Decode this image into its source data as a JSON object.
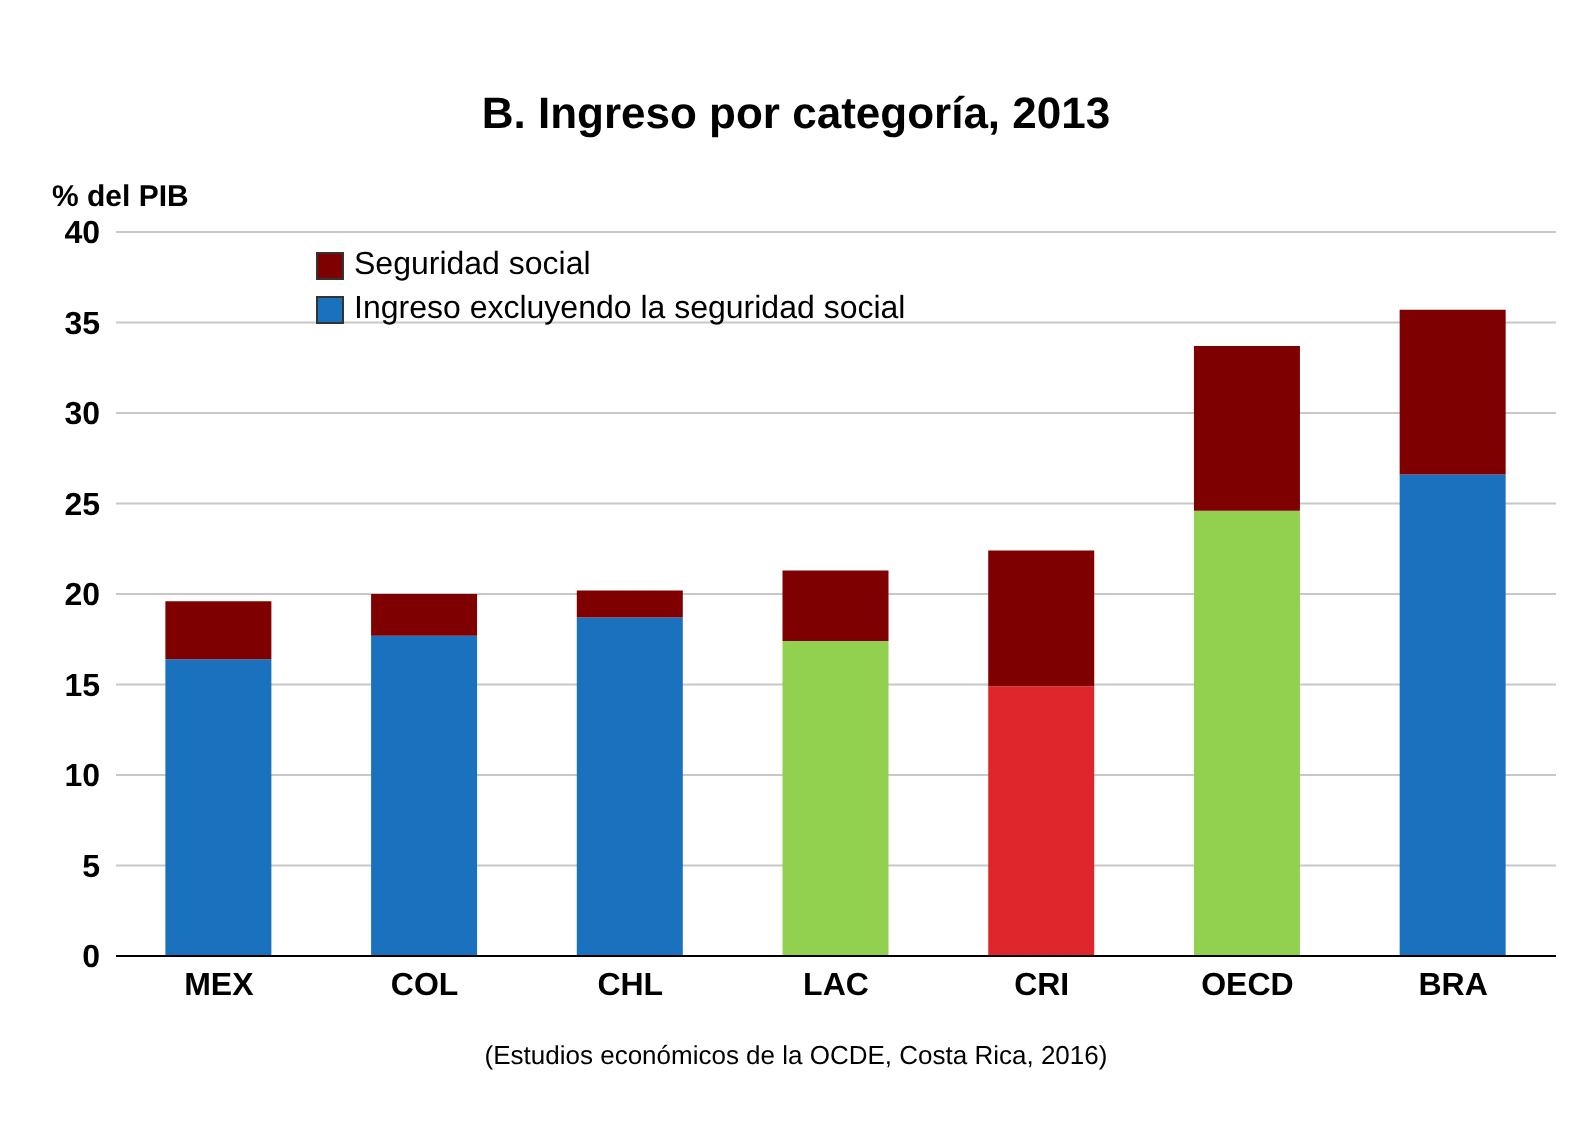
{
  "chart_data": {
    "type": "bar",
    "title": "B.  Ingreso por categoría, 2013",
    "ylabel": "% del PIB",
    "categories": [
      "MEX",
      "COL",
      "CHL",
      "LAC",
      "CRI",
      "OECD",
      "BRA"
    ],
    "stacked": true,
    "series": [
      {
        "name": "Ingreso excluyendo la seguridad social",
        "color": "#1a72bf",
        "colors": [
          "#1a72bf",
          "#1a72bf",
          "#1a72bf",
          "#92d050",
          "#e0262d",
          "#92d050",
          "#1a72bf"
        ],
        "values": [
          16.4,
          17.7,
          18.7,
          17.4,
          14.9,
          24.6,
          26.6
        ]
      },
      {
        "name": "Seguridad social",
        "color": "#7f0000",
        "values": [
          3.2,
          2.3,
          1.5,
          3.9,
          7.5,
          9.1,
          9.1
        ]
      }
    ],
    "ylim": [
      0,
      40
    ],
    "yticks": [
      0,
      5,
      10,
      15,
      20,
      25,
      30,
      35,
      40
    ],
    "grid": "y",
    "legend": "top left",
    "annotations": [
      "(Estudios económicos de la OCDE, Costa Rica, 2016)"
    ]
  }
}
